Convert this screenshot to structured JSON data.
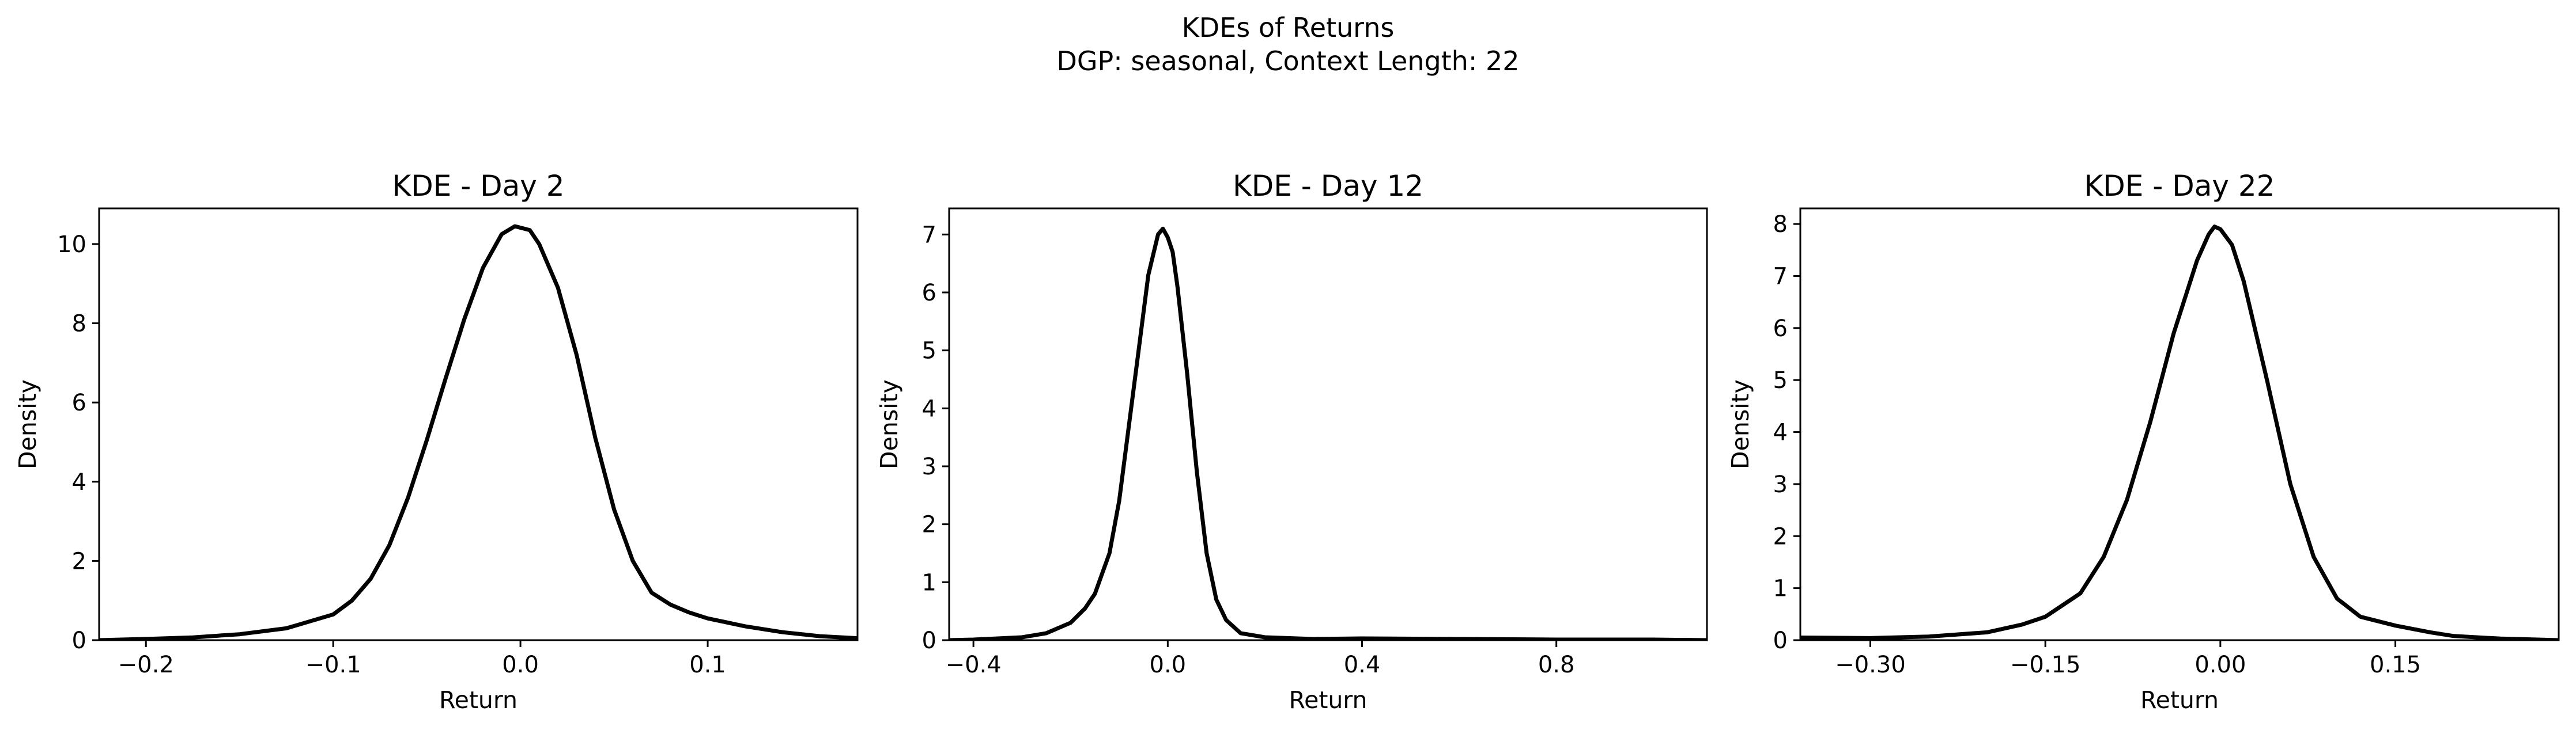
{
  "figure": {
    "title_line1": "KDEs of Returns",
    "title_line2": "DGP: seasonal, Context Length: 22"
  },
  "chart_data": [
    {
      "type": "line",
      "title": "KDE - Day 2",
      "xlabel": "Return",
      "ylabel": "Density",
      "xlim": [
        -0.225,
        0.18
      ],
      "ylim": [
        0,
        10.9
      ],
      "xticks": [
        -0.2,
        -0.1,
        0.0,
        0.1
      ],
      "xtick_labels": [
        "−0.2",
        "−0.1",
        "0.0",
        "0.1"
      ],
      "yticks": [
        0,
        2,
        4,
        6,
        8,
        10
      ],
      "ytick_labels": [
        "0",
        "2",
        "4",
        "6",
        "8",
        "10"
      ],
      "line_color": "#000000",
      "grid": false,
      "series": [
        {
          "x": [
            -0.225,
            -0.2,
            -0.175,
            -0.15,
            -0.125,
            -0.1,
            -0.09,
            -0.08,
            -0.07,
            -0.06,
            -0.05,
            -0.04,
            -0.03,
            -0.02,
            -0.01,
            -0.003,
            0.005,
            0.01,
            0.02,
            0.03,
            0.04,
            0.05,
            0.06,
            0.07,
            0.08,
            0.09,
            0.1,
            0.12,
            0.14,
            0.16,
            0.18
          ],
          "y": [
            0.0,
            0.03,
            0.07,
            0.15,
            0.3,
            0.65,
            1.0,
            1.55,
            2.4,
            3.6,
            5.05,
            6.6,
            8.1,
            9.4,
            10.25,
            10.45,
            10.35,
            10.0,
            8.9,
            7.2,
            5.1,
            3.3,
            2.0,
            1.2,
            0.9,
            0.7,
            0.55,
            0.35,
            0.2,
            0.1,
            0.05
          ]
        }
      ]
    },
    {
      "type": "line",
      "title": "KDE - Day 12",
      "xlabel": "Return",
      "ylabel": "Density",
      "xlim": [
        -0.45,
        1.11
      ],
      "ylim": [
        0,
        7.45
      ],
      "xticks": [
        -0.4,
        0.0,
        0.4,
        0.8
      ],
      "xtick_labels": [
        "−0.4",
        "0.0",
        "0.4",
        "0.8"
      ],
      "yticks": [
        0,
        1,
        2,
        3,
        4,
        5,
        6,
        7
      ],
      "ytick_labels": [
        "0",
        "1",
        "2",
        "3",
        "4",
        "5",
        "6",
        "7"
      ],
      "line_color": "#000000",
      "grid": false,
      "series": [
        {
          "x": [
            -0.45,
            -0.4,
            -0.3,
            -0.25,
            -0.2,
            -0.17,
            -0.15,
            -0.12,
            -0.1,
            -0.08,
            -0.06,
            -0.04,
            -0.02,
            -0.01,
            0.0,
            0.01,
            0.02,
            0.04,
            0.06,
            0.08,
            0.1,
            0.12,
            0.15,
            0.2,
            0.3,
            0.4,
            0.6,
            0.8,
            1.0,
            1.11
          ],
          "y": [
            0.0,
            0.01,
            0.05,
            0.12,
            0.3,
            0.55,
            0.8,
            1.5,
            2.4,
            3.7,
            5.0,
            6.3,
            7.0,
            7.1,
            6.95,
            6.7,
            6.1,
            4.6,
            2.9,
            1.5,
            0.7,
            0.35,
            0.12,
            0.05,
            0.02,
            0.03,
            0.02,
            0.01,
            0.01,
            0.0
          ]
        }
      ]
    },
    {
      "type": "line",
      "title": "KDE - Day 22",
      "xlabel": "Return",
      "ylabel": "Density",
      "xlim": [
        -0.36,
        0.29
      ],
      "ylim": [
        0,
        8.3
      ],
      "xticks": [
        -0.3,
        -0.15,
        0.0,
        0.15
      ],
      "xtick_labels": [
        "−0.30",
        "−0.15",
        "0.00",
        "0.15"
      ],
      "yticks": [
        0,
        1,
        2,
        3,
        4,
        5,
        6,
        7,
        8
      ],
      "ytick_labels": [
        "0",
        "1",
        "2",
        "3",
        "4",
        "5",
        "6",
        "7",
        "8"
      ],
      "line_color": "#000000",
      "grid": false,
      "series": [
        {
          "x": [
            -0.36,
            -0.3,
            -0.25,
            -0.2,
            -0.17,
            -0.15,
            -0.12,
            -0.1,
            -0.08,
            -0.06,
            -0.04,
            -0.02,
            -0.01,
            -0.005,
            0.0,
            0.01,
            0.02,
            0.04,
            0.06,
            0.08,
            0.1,
            0.12,
            0.15,
            0.18,
            0.2,
            0.24,
            0.29
          ],
          "y": [
            0.05,
            0.04,
            0.07,
            0.15,
            0.3,
            0.45,
            0.9,
            1.6,
            2.7,
            4.2,
            5.9,
            7.3,
            7.8,
            7.95,
            7.9,
            7.6,
            6.9,
            5.0,
            3.0,
            1.6,
            0.8,
            0.45,
            0.28,
            0.15,
            0.08,
            0.03,
            0.0
          ]
        }
      ]
    }
  ]
}
